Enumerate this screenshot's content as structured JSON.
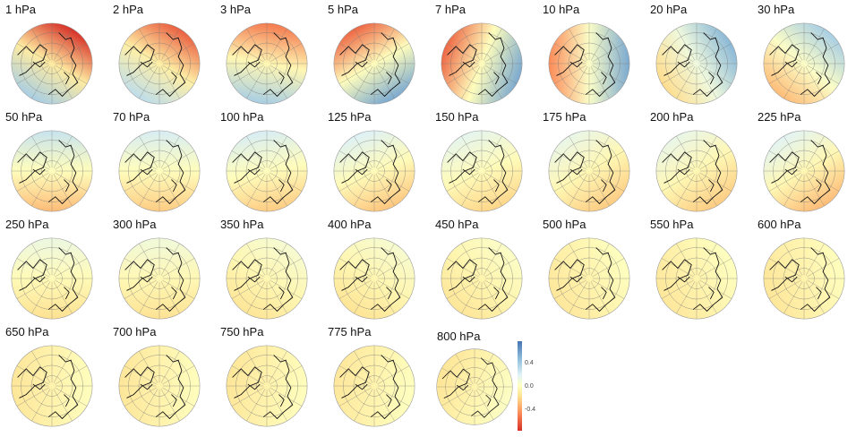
{
  "panels": [
    {
      "label": "1 hPa",
      "red_side_angle_deg": 30,
      "amplitude": 0.6,
      "mean": -0.15
    },
    {
      "label": "2 hPa",
      "red_side_angle_deg": 30,
      "amplitude": 0.5,
      "mean": -0.12
    },
    {
      "label": "3 hPa",
      "red_side_angle_deg": 10,
      "amplitude": 0.5,
      "mean": -0.05
    },
    {
      "label": "5 hPa",
      "red_side_angle_deg": -30,
      "amplitude": 0.6,
      "mean": 0.0
    },
    {
      "label": "7 hPa",
      "red_side_angle_deg": -70,
      "amplitude": 0.6,
      "mean": 0.0
    },
    {
      "label": "10 hPa",
      "red_side_angle_deg": -90,
      "amplitude": 0.55,
      "mean": 0.05
    },
    {
      "label": "20 hPa",
      "red_side_angle_deg": -120,
      "amplitude": 0.4,
      "mean": 0.15
    },
    {
      "label": "30 hPa",
      "red_side_angle_deg": -140,
      "amplitude": 0.4,
      "mean": 0.05
    },
    {
      "label": "50 hPa",
      "red_side_angle_deg": 180,
      "amplitude": 0.35,
      "mean": 0.0
    },
    {
      "label": "70 hPa",
      "red_side_angle_deg": 180,
      "amplitude": 0.3,
      "mean": 0.0
    },
    {
      "label": "100 hPa",
      "red_side_angle_deg": 170,
      "amplitude": 0.3,
      "mean": 0.0
    },
    {
      "label": "125 hPa",
      "red_side_angle_deg": 160,
      "amplitude": 0.3,
      "mean": -0.02
    },
    {
      "label": "150 hPa",
      "red_side_angle_deg": 160,
      "amplitude": 0.25,
      "mean": -0.02
    },
    {
      "label": "175 hPa",
      "red_side_angle_deg": 150,
      "amplitude": 0.25,
      "mean": -0.05
    },
    {
      "label": "200 hPa",
      "red_side_angle_deg": 150,
      "amplitude": 0.25,
      "mean": -0.05
    },
    {
      "label": "225 hPa",
      "red_side_angle_deg": 150,
      "amplitude": 0.3,
      "mean": -0.05
    },
    {
      "label": "250 hPa",
      "red_side_angle_deg": 180,
      "amplitude": 0.2,
      "mean": -0.03
    },
    {
      "label": "300 hPa",
      "red_side_angle_deg": 180,
      "amplitude": 0.18,
      "mean": -0.04
    },
    {
      "label": "350 hPa",
      "red_side_angle_deg": -150,
      "amplitude": 0.15,
      "mean": -0.05
    },
    {
      "label": "400 hPa",
      "red_side_angle_deg": -150,
      "amplitude": 0.15,
      "mean": -0.06
    },
    {
      "label": "450 hPa",
      "red_side_angle_deg": -140,
      "amplitude": 0.12,
      "mean": -0.07
    },
    {
      "label": "500 hPa",
      "red_side_angle_deg": -120,
      "amplitude": 0.1,
      "mean": -0.08
    },
    {
      "label": "550 hPa",
      "red_side_angle_deg": -120,
      "amplitude": 0.1,
      "mean": -0.08
    },
    {
      "label": "600 hPa",
      "red_side_angle_deg": -110,
      "amplitude": 0.1,
      "mean": -0.09
    },
    {
      "label": "650 hPa",
      "red_side_angle_deg": -90,
      "amplitude": 0.1,
      "mean": -0.09
    },
    {
      "label": "700 hPa",
      "red_side_angle_deg": -90,
      "amplitude": 0.1,
      "mean": -0.09
    },
    {
      "label": "750 hPa",
      "red_side_angle_deg": -80,
      "amplitude": 0.1,
      "mean": -0.09
    },
    {
      "label": "775 hPa",
      "red_side_angle_deg": -80,
      "amplitude": 0.1,
      "mean": -0.08
    },
    {
      "label": "800 hPa",
      "red_side_angle_deg": -70,
      "amplitude": 0.12,
      "mean": -0.08
    }
  ],
  "colorbar": {
    "colormap": "RdYlBu",
    "range": [
      -0.75,
      0.78
    ],
    "ticks": [
      {
        "value": 0.4,
        "label": "0.4"
      },
      {
        "value": 0.0,
        "label": "0.0"
      },
      {
        "value": -0.4,
        "label": "-0.4"
      }
    ],
    "colors": [
      "#d73027",
      "#fc8d59",
      "#fee090",
      "#ffffbf",
      "#e0f3f8",
      "#91bfdb",
      "#4575b4"
    ]
  }
}
